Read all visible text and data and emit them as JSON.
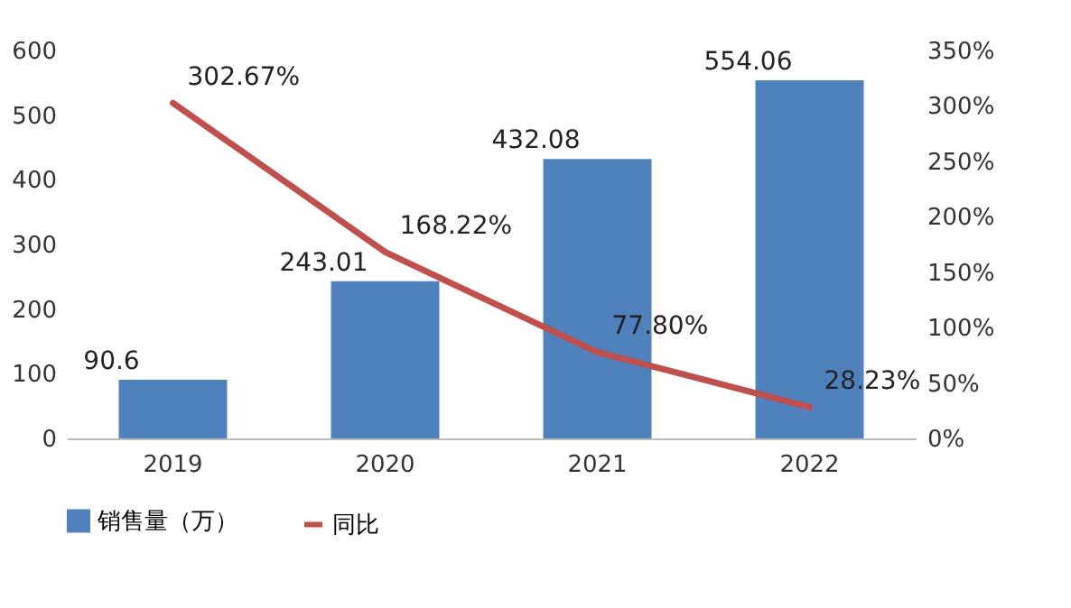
{
  "chart_data": {
    "type": "bar",
    "categories": [
      "2019",
      "2020",
      "2021",
      "2022"
    ],
    "series": [
      {
        "name": "销售量（万）",
        "color": "#4f81bd",
        "values": [
          90.6,
          243.01,
          432.08,
          554.06
        ],
        "value_labels": [
          "90.6",
          "243.01",
          "432.08",
          "554.06"
        ]
      },
      {
        "name": "同比",
        "type": "line",
        "axis": "y2",
        "color": "#c0504d",
        "values": [
          302.67,
          168.22,
          77.8,
          28.23
        ],
        "value_labels": [
          "302.67%",
          "168.22%",
          "77.80%",
          "28.23%"
        ]
      }
    ],
    "ylim": [
      0,
      600
    ],
    "yticks": [
      0,
      100,
      200,
      300,
      400,
      500,
      600
    ],
    "y2lim": [
      0,
      350
    ],
    "y2ticks": [
      {
        "value": 0,
        "label": "0%"
      },
      {
        "value": 50,
        "label": "50%"
      },
      {
        "value": 100,
        "label": "100%"
      },
      {
        "value": 150,
        "label": "150%"
      },
      {
        "value": 200,
        "label": "200%"
      },
      {
        "value": 250,
        "label": "250%"
      },
      {
        "value": 300,
        "label": "300%"
      },
      {
        "value": 350,
        "label": "350%"
      }
    ],
    "legend": "bottom",
    "grid": false,
    "marker": "none",
    "line_style": "solid"
  }
}
